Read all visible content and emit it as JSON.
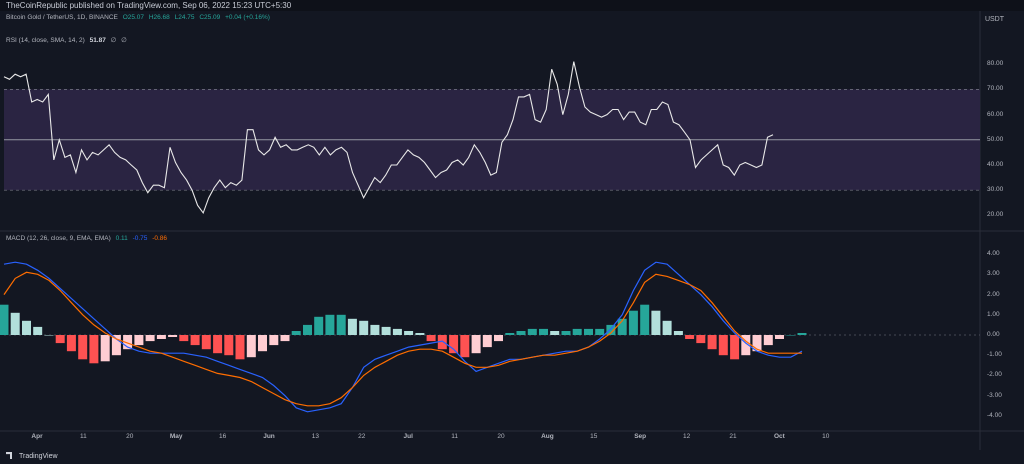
{
  "header": {
    "published_text": "TheCoinRepublic published on TradingView.com, Sep 06, 2022 15:23 UTC+5:30"
  },
  "symbol_legend": {
    "name": "Bitcoin Gold / TetherUS, 1D, BINANCE",
    "open": "O25.07",
    "high": "H26.68",
    "low": "L24.75",
    "close": "C25.09",
    "change": "+0.04 (+0.16%)"
  },
  "currency": "USDT",
  "rsi_legend": {
    "label": "RSI (14, close, SMA, 14, 2)",
    "value": "51.87",
    "na1": "∅",
    "na2": "∅"
  },
  "macd_legend": {
    "label": "MACD (12, 26, close, 9, EMA, EMA)",
    "hist": "0.11",
    "macd": "-0.75",
    "signal": "-0.86"
  },
  "rsi_axis": [
    "80.00",
    "70.00",
    "60.00",
    "50.00",
    "40.00",
    "30.00",
    "20.00"
  ],
  "macd_axis": [
    "4.00",
    "3.00",
    "2.00",
    "1.00",
    "0.00",
    "-1.00",
    "-2.00",
    "-3.00",
    "-4.00"
  ],
  "x_axis": [
    "Apr",
    "11",
    "20",
    "May",
    "16",
    "Jun",
    "13",
    "22",
    "Jul",
    "11",
    "20",
    "Aug",
    "15",
    "Sep",
    "12",
    "21",
    "Oct",
    "10"
  ],
  "footer": {
    "brand": "TradingView"
  },
  "colors": {
    "background": "#131722",
    "rsi_band": "#2a2442",
    "rsi_line": "#e8e8e8",
    "macd_line": "#2962ff",
    "signal_line": "#ff6d00",
    "hist_up_strong": "#26a69a",
    "hist_up_weak": "#b2dfdb",
    "hist_down_strong": "#ff5252",
    "hist_down_weak": "#ffcdd2"
  },
  "chart_data": [
    {
      "type": "line",
      "title": "RSI (14, close, SMA, 14, 2)",
      "ylim": [
        15,
        88
      ],
      "bands": [
        30,
        70
      ],
      "midline": 50,
      "values": [
        75,
        74,
        76,
        75,
        76,
        65,
        66,
        65,
        68,
        42,
        50,
        43,
        44,
        37,
        46,
        42,
        45,
        44,
        46,
        48,
        45,
        43,
        42,
        40,
        38,
        33,
        29,
        32,
        32,
        31,
        47,
        41,
        37,
        34,
        30,
        24,
        21,
        27,
        31,
        34,
        31,
        33,
        32,
        34,
        54,
        54,
        46,
        44,
        46,
        51,
        47,
        48,
        46,
        46,
        47,
        48,
        47,
        44,
        47,
        44,
        46,
        47,
        45,
        37,
        32,
        27,
        31,
        35,
        33,
        36,
        40,
        40,
        43,
        46,
        44,
        43,
        41,
        38,
        35,
        37,
        38,
        41,
        42,
        40,
        43,
        48,
        45,
        41,
        36,
        37,
        49,
        52,
        58,
        67,
        67,
        68,
        58,
        57,
        62,
        78,
        72,
        60,
        68,
        81,
        71,
        63,
        61,
        60,
        59,
        60,
        62,
        62,
        58,
        61,
        61,
        57,
        56,
        62,
        62,
        65,
        64,
        57,
        56,
        53,
        50,
        39,
        42,
        44,
        46,
        48,
        40,
        39,
        36,
        40,
        41,
        40,
        39,
        40,
        51,
        52
      ]
    },
    {
      "type": "line",
      "title": "MACD (12, 26, close, 9, EMA, EMA)",
      "ylim": [
        -4.6,
        4.6
      ],
      "series": [
        {
          "name": "MACD",
          "values": [
            3.5,
            3.6,
            3.5,
            3.2,
            2.8,
            2.3,
            1.8,
            1.3,
            0.8,
            0.3,
            -0.2,
            -0.6,
            -0.8,
            -0.9,
            -0.9,
            -0.9,
            -0.9,
            -1.0,
            -1.1,
            -1.3,
            -1.5,
            -1.7,
            -1.9,
            -2.1,
            -2.5,
            -3.0,
            -3.6,
            -3.8,
            -3.7,
            -3.6,
            -3.4,
            -2.6,
            -1.6,
            -1.2,
            -1.0,
            -0.8,
            -0.6,
            -0.5,
            -0.4,
            -0.3,
            -0.7,
            -1.3,
            -1.8,
            -1.6,
            -1.4,
            -1.2,
            -1.2,
            -1.1,
            -1.0,
            -0.9,
            -0.8,
            -0.8,
            -0.6,
            -0.2,
            0.3,
            1.0,
            2.2,
            3.2,
            3.6,
            3.5,
            3.0,
            2.5,
            2.0,
            1.4,
            0.7,
            0.1,
            -0.4,
            -0.8,
            -1.0,
            -1.1,
            -1.1,
            -0.8
          ]
        },
        {
          "name": "Signal",
          "values": [
            2.0,
            2.8,
            3.1,
            3.0,
            2.7,
            2.2,
            1.6,
            1.0,
            0.5,
            0.1,
            -0.2,
            -0.4,
            -0.6,
            -0.8,
            -0.9,
            -1.1,
            -1.3,
            -1.5,
            -1.7,
            -1.9,
            -2.0,
            -2.1,
            -2.3,
            -2.6,
            -2.9,
            -3.2,
            -3.4,
            -3.5,
            -3.5,
            -3.4,
            -3.1,
            -2.6,
            -2.0,
            -1.6,
            -1.3,
            -1.0,
            -0.8,
            -0.7,
            -0.7,
            -0.8,
            -1.1,
            -1.4,
            -1.6,
            -1.6,
            -1.5,
            -1.3,
            -1.2,
            -1.1,
            -1.0,
            -1.0,
            -0.9,
            -0.8,
            -0.6,
            -0.3,
            0.1,
            0.7,
            1.6,
            2.6,
            3.0,
            2.9,
            2.7,
            2.5,
            2.2,
            1.6,
            0.9,
            0.2,
            -0.3,
            -0.7,
            -0.9,
            -0.9,
            -0.9,
            -0.9
          ]
        }
      ],
      "histogram": [
        1.5,
        1.1,
        0.7,
        0.4,
        0.0,
        -0.4,
        -0.8,
        -1.2,
        -1.4,
        -1.3,
        -1.0,
        -0.7,
        -0.5,
        -0.3,
        -0.2,
        -0.1,
        -0.3,
        -0.5,
        -0.7,
        -0.9,
        -1.0,
        -1.2,
        -1.1,
        -0.8,
        -0.5,
        -0.3,
        0.2,
        0.5,
        0.9,
        1.0,
        1.0,
        0.8,
        0.7,
        0.5,
        0.4,
        0.3,
        0.2,
        0.1,
        -0.3,
        -0.7,
        -0.9,
        -1.1,
        -0.9,
        -0.6,
        -0.3,
        0.1,
        0.2,
        0.3,
        0.3,
        0.2,
        0.2,
        0.3,
        0.3,
        0.3,
        0.5,
        0.8,
        1.2,
        1.5,
        1.2,
        0.7,
        0.2,
        -0.2,
        -0.4,
        -0.7,
        -1.0,
        -1.2,
        -1.0,
        -0.8,
        -0.5,
        -0.2,
        0.0,
        0.1
      ]
    }
  ]
}
